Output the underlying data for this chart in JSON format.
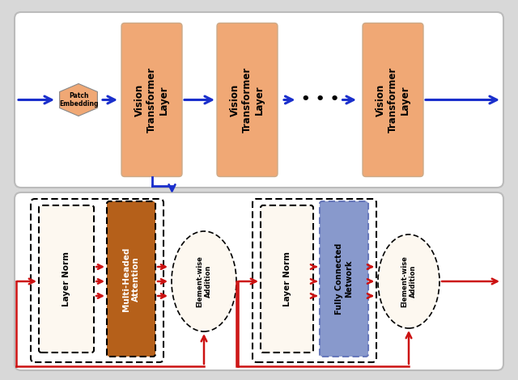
{
  "bg_color": "#d8d8d8",
  "top_panel_bg": "#ffffff",
  "bottom_panel_bg": "#ffffff",
  "vit_color": "#f0a875",
  "patch_color": "#f0a875",
  "mha_color": "#b5601a",
  "fcn_color": "#8899cc",
  "arrow_blue": "#1a2fcc",
  "arrow_red": "#cc1111",
  "dots_text": "• • •",
  "layer_norm_text": "Layer Norm",
  "mha_text": "Multi-Headed\nAttention",
  "fcn_text": "Fully Connected\nNetwork",
  "elem_text": "Element-wise\nAddition",
  "vit_text": "Vision\nTransformer\nLayer",
  "patch_text": "Patch\nEmbedding"
}
